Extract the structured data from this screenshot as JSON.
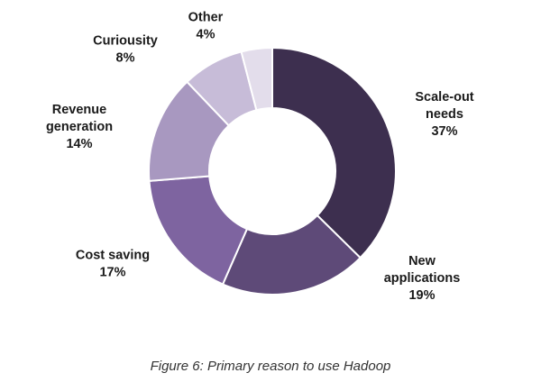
{
  "chart_data": {
    "type": "pie",
    "variant": "donut",
    "slices": [
      {
        "label_lines": [
          "Scale-out",
          "needs"
        ],
        "pct_label": "37%",
        "value": 37,
        "color": "#3d2f4f"
      },
      {
        "label_lines": [
          "New",
          "applications"
        ],
        "pct_label": "19%",
        "value": 19,
        "color": "#5e4a78"
      },
      {
        "label_lines": [
          "Cost saving"
        ],
        "pct_label": "17%",
        "value": 17,
        "color": "#7e64a0"
      },
      {
        "label_lines": [
          "Revenue",
          "generation"
        ],
        "pct_label": "14%",
        "value": 14,
        "color": "#a898c0"
      },
      {
        "label_lines": [
          "Curiousity"
        ],
        "pct_label": "8%",
        "value": 8,
        "color": "#c7bcd8"
      },
      {
        "label_lines": [
          "Other"
        ],
        "pct_label": "4%",
        "value": 4,
        "color": "#e3ddeb"
      }
    ]
  },
  "caption": "Figure 6: Primary reason to use Hadoop"
}
